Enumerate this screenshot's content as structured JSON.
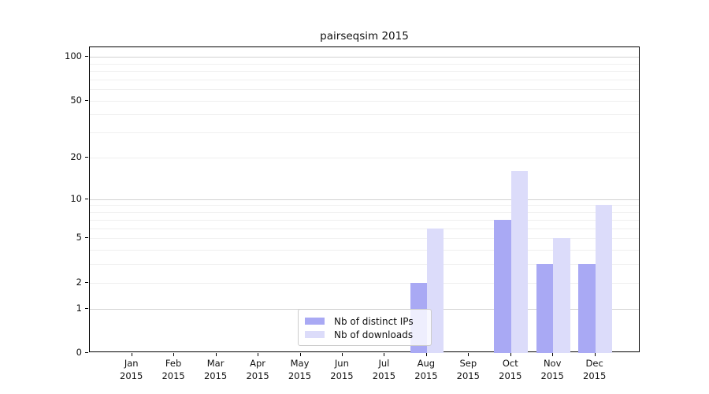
{
  "chart_data": {
    "type": "bar",
    "title": "pairseqsim 2015",
    "categories": [
      "Jan",
      "Feb",
      "Mar",
      "Apr",
      "May",
      "Jun",
      "Jul",
      "Aug",
      "Sep",
      "Oct",
      "Nov",
      "Dec"
    ],
    "x_year_label": "2015",
    "series": [
      {
        "name": "Nb of distinct IPs",
        "color": "#a9a9f4",
        "values": [
          0,
          0,
          0,
          0,
          0,
          0,
          0,
          2,
          0,
          7,
          3,
          3
        ]
      },
      {
        "name": "Nb of downloads",
        "color": "#dcdcfa",
        "values": [
          0,
          0,
          0,
          0,
          0,
          0,
          0,
          6,
          0,
          16,
          5,
          9
        ]
      }
    ],
    "yscale": "log1p",
    "ylim": [
      0,
      115
    ],
    "yticks": [
      100,
      50,
      20,
      10,
      5,
      2,
      1,
      0
    ],
    "minor_gridlines": [
      2,
      3,
      4,
      5,
      6,
      7,
      8,
      9,
      20,
      30,
      40,
      50,
      60,
      70,
      80,
      90
    ],
    "major_gridlines": [
      1,
      10,
      100
    ],
    "grid": true,
    "legend_position": "lower center",
    "axis_color": "#000000",
    "background_color": "#ffffff"
  }
}
